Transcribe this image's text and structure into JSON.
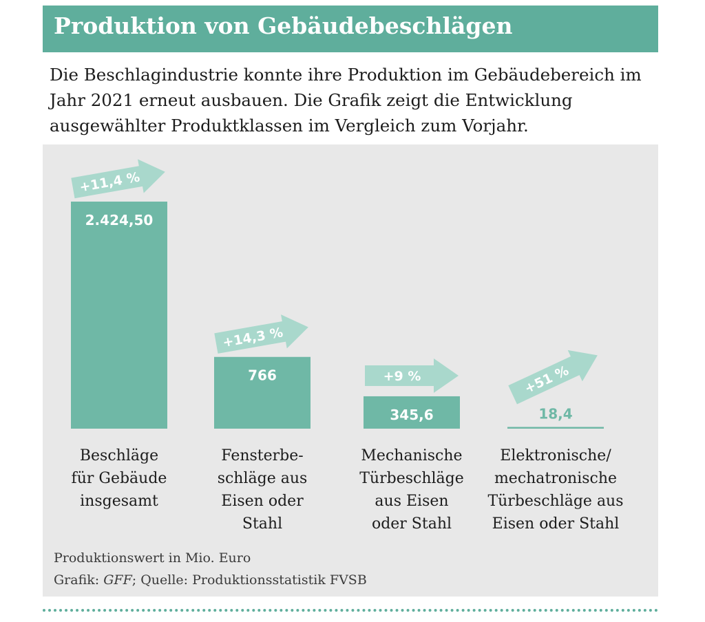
{
  "header": {
    "title": "Produktion von Gebäudebeschlägen",
    "intro": "Die Beschlagindustrie konnte ihre Produktion im Gebäudebereich im Jahr 2021 erneut ausbauen. Die Grafik zeigt die Entwicklung ausgewählter Produktklassen im Vergleich zum Vorjahr."
  },
  "chart_data": {
    "type": "bar",
    "categories": [
      [
        "Beschläge",
        "für Gebäude",
        "insgesamt"
      ],
      [
        "Fensterbe-",
        "schläge aus",
        "Eisen oder",
        "Stahl"
      ],
      [
        "Mechanische",
        "Türbeschläge",
        "aus Eisen",
        "oder Stahl"
      ],
      [
        "Elektronische/",
        "mechatronische",
        "Türbeschläge aus",
        "Eisen oder Stahl"
      ]
    ],
    "values": [
      2424.5,
      766,
      345.6,
      18.4
    ],
    "value_labels": [
      "2.424,50",
      "766",
      "345,6",
      "18,4"
    ],
    "changes": [
      "+11,4 %",
      "+14,3 %",
      "+9 %",
      "+51 %"
    ],
    "unit_note": "Produktionswert in Mio. Euro",
    "colors": {
      "bar": "#6fb8a6",
      "arrow": "#a9d8cc",
      "panel": "#e8e8e8",
      "accent": "#5fae9c"
    }
  },
  "footer": {
    "unit": "Produktionswert in Mio. Euro",
    "credit_prefix": "Grafik: ",
    "credit_author": "GFF",
    "credit_suffix": "; Quelle: Produktionsstatistik FVSB"
  }
}
